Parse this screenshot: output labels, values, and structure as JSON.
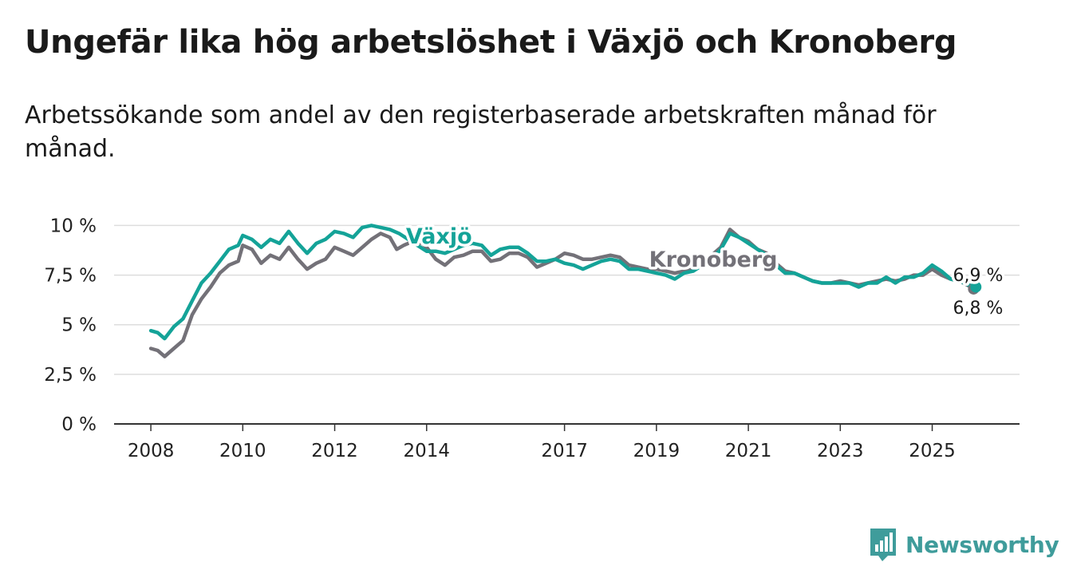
{
  "title": "Ungefär lika hög arbetslöshet i Växjö och Kronoberg",
  "subtitle": "Arbetssökande som andel av den registerbaserade arbetskraften månad för månad.",
  "brand": "Newsworthy",
  "colors": {
    "vaxjo": "#14a398",
    "kronoberg": "#737178",
    "grid": "#dddddd",
    "axis": "#333333",
    "brand": "#3f9c9b"
  },
  "chart_data": {
    "type": "line",
    "title": "Ungefär lika hög arbetslöshet i Växjö och Kronoberg",
    "subtitle": "Arbetssökande som andel av den registerbaserade arbetskraften månad för månad.",
    "xlabel": "",
    "ylabel": "",
    "ylim": [
      0,
      10.5
    ],
    "xlim": [
      2007.2,
      2026.9
    ],
    "grid": true,
    "x_ticks": [
      {
        "value": 2008,
        "label": "2008"
      },
      {
        "value": 2010,
        "label": "2010"
      },
      {
        "value": 2012,
        "label": "2012"
      },
      {
        "value": 2014,
        "label": "2014"
      },
      {
        "value": 2017,
        "label": "2017"
      },
      {
        "value": 2019,
        "label": "2019"
      },
      {
        "value": 2021,
        "label": "2021"
      },
      {
        "value": 2023,
        "label": "2023"
      },
      {
        "value": 2025,
        "label": "2025"
      }
    ],
    "y_ticks": [
      {
        "value": 0,
        "label": "0 %"
      },
      {
        "value": 2.5,
        "label": "2,5 %"
      },
      {
        "value": 5,
        "label": "5 %"
      },
      {
        "value": 7.5,
        "label": "7,5 %"
      },
      {
        "value": 10,
        "label": "10 %"
      }
    ],
    "series": [
      {
        "name": "Kronoberg",
        "label": "Kronoberg",
        "end_label": "6,8 %",
        "points": [
          [
            2008.0,
            3.8
          ],
          [
            2008.15,
            3.7
          ],
          [
            2008.3,
            3.4
          ],
          [
            2008.5,
            3.8
          ],
          [
            2008.7,
            4.2
          ],
          [
            2008.9,
            5.5
          ],
          [
            2009.1,
            6.3
          ],
          [
            2009.3,
            6.9
          ],
          [
            2009.5,
            7.6
          ],
          [
            2009.7,
            8.0
          ],
          [
            2009.9,
            8.2
          ],
          [
            2010.0,
            9.0
          ],
          [
            2010.2,
            8.8
          ],
          [
            2010.4,
            8.1
          ],
          [
            2010.6,
            8.5
          ],
          [
            2010.8,
            8.3
          ],
          [
            2011.0,
            8.9
          ],
          [
            2011.2,
            8.3
          ],
          [
            2011.4,
            7.8
          ],
          [
            2011.6,
            8.1
          ],
          [
            2011.8,
            8.3
          ],
          [
            2012.0,
            8.9
          ],
          [
            2012.2,
            8.7
          ],
          [
            2012.4,
            8.5
          ],
          [
            2012.6,
            8.9
          ],
          [
            2012.8,
            9.3
          ],
          [
            2013.0,
            9.6
          ],
          [
            2013.2,
            9.4
          ],
          [
            2013.35,
            8.8
          ],
          [
            2013.5,
            9.0
          ],
          [
            2013.7,
            9.2
          ],
          [
            2013.9,
            9.1
          ],
          [
            2014.0,
            8.9
          ],
          [
            2014.2,
            8.3
          ],
          [
            2014.4,
            8.0
          ],
          [
            2014.6,
            8.4
          ],
          [
            2014.8,
            8.5
          ],
          [
            2015.0,
            8.7
          ],
          [
            2015.2,
            8.7
          ],
          [
            2015.4,
            8.2
          ],
          [
            2015.6,
            8.3
          ],
          [
            2015.8,
            8.6
          ],
          [
            2016.0,
            8.6
          ],
          [
            2016.2,
            8.4
          ],
          [
            2016.4,
            7.9
          ],
          [
            2016.6,
            8.1
          ],
          [
            2016.8,
            8.3
          ],
          [
            2017.0,
            8.6
          ],
          [
            2017.2,
            8.5
          ],
          [
            2017.4,
            8.3
          ],
          [
            2017.6,
            8.3
          ],
          [
            2017.8,
            8.4
          ],
          [
            2018.0,
            8.5
          ],
          [
            2018.2,
            8.4
          ],
          [
            2018.4,
            8.0
          ],
          [
            2018.6,
            7.9
          ],
          [
            2018.8,
            7.8
          ],
          [
            2019.0,
            7.8
          ],
          [
            2019.2,
            7.7
          ],
          [
            2019.4,
            7.6
          ],
          [
            2019.6,
            7.7
          ],
          [
            2019.8,
            7.8
          ],
          [
            2020.0,
            8.1
          ],
          [
            2020.2,
            8.5
          ],
          [
            2020.4,
            8.9
          ],
          [
            2020.6,
            9.8
          ],
          [
            2020.8,
            9.4
          ],
          [
            2021.0,
            9.2
          ],
          [
            2021.2,
            8.8
          ],
          [
            2021.4,
            8.6
          ],
          [
            2021.6,
            8.1
          ],
          [
            2021.8,
            7.7
          ],
          [
            2022.0,
            7.6
          ],
          [
            2022.2,
            7.4
          ],
          [
            2022.4,
            7.2
          ],
          [
            2022.6,
            7.1
          ],
          [
            2022.8,
            7.1
          ],
          [
            2023.0,
            7.2
          ],
          [
            2023.2,
            7.1
          ],
          [
            2023.4,
            7.0
          ],
          [
            2023.6,
            7.1
          ],
          [
            2023.8,
            7.2
          ],
          [
            2024.0,
            7.3
          ],
          [
            2024.2,
            7.2
          ],
          [
            2024.4,
            7.3
          ],
          [
            2024.6,
            7.5
          ],
          [
            2024.8,
            7.5
          ],
          [
            2025.0,
            7.8
          ],
          [
            2025.2,
            7.5
          ],
          [
            2025.4,
            7.3
          ],
          [
            2025.6,
            7.2
          ],
          [
            2025.8,
            6.95
          ],
          [
            2025.9,
            6.8
          ]
        ]
      },
      {
        "name": "Växjö",
        "label": "Växjö",
        "end_label": "6,9 %",
        "points": [
          [
            2008.0,
            4.7
          ],
          [
            2008.15,
            4.6
          ],
          [
            2008.3,
            4.3
          ],
          [
            2008.5,
            4.9
          ],
          [
            2008.7,
            5.3
          ],
          [
            2008.9,
            6.2
          ],
          [
            2009.1,
            7.1
          ],
          [
            2009.3,
            7.6
          ],
          [
            2009.5,
            8.2
          ],
          [
            2009.7,
            8.8
          ],
          [
            2009.9,
            9.0
          ],
          [
            2010.0,
            9.5
          ],
          [
            2010.2,
            9.3
          ],
          [
            2010.4,
            8.9
          ],
          [
            2010.6,
            9.3
          ],
          [
            2010.8,
            9.1
          ],
          [
            2011.0,
            9.7
          ],
          [
            2011.2,
            9.1
          ],
          [
            2011.4,
            8.6
          ],
          [
            2011.6,
            9.1
          ],
          [
            2011.8,
            9.3
          ],
          [
            2012.0,
            9.7
          ],
          [
            2012.2,
            9.6
          ],
          [
            2012.4,
            9.4
          ],
          [
            2012.6,
            9.9
          ],
          [
            2012.8,
            10.0
          ],
          [
            2013.0,
            9.9
          ],
          [
            2013.2,
            9.8
          ],
          [
            2013.4,
            9.6
          ],
          [
            2013.6,
            9.3
          ],
          [
            2013.8,
            9.0
          ],
          [
            2014.0,
            8.7
          ],
          [
            2014.2,
            8.7
          ],
          [
            2014.4,
            8.6
          ],
          [
            2014.6,
            8.8
          ],
          [
            2014.8,
            9.0
          ],
          [
            2015.0,
            9.1
          ],
          [
            2015.2,
            9.0
          ],
          [
            2015.4,
            8.5
          ],
          [
            2015.6,
            8.8
          ],
          [
            2015.8,
            8.9
          ],
          [
            2016.0,
            8.9
          ],
          [
            2016.2,
            8.6
          ],
          [
            2016.4,
            8.2
          ],
          [
            2016.6,
            8.2
          ],
          [
            2016.8,
            8.3
          ],
          [
            2017.0,
            8.1
          ],
          [
            2017.2,
            8.0
          ],
          [
            2017.4,
            7.8
          ],
          [
            2017.6,
            8.0
          ],
          [
            2017.8,
            8.2
          ],
          [
            2018.0,
            8.3
          ],
          [
            2018.2,
            8.2
          ],
          [
            2018.4,
            7.8
          ],
          [
            2018.6,
            7.8
          ],
          [
            2018.8,
            7.7
          ],
          [
            2019.0,
            7.6
          ],
          [
            2019.2,
            7.5
          ],
          [
            2019.4,
            7.3
          ],
          [
            2019.6,
            7.6
          ],
          [
            2019.8,
            7.7
          ],
          [
            2020.0,
            8.0
          ],
          [
            2020.2,
            8.3
          ],
          [
            2020.4,
            8.8
          ],
          [
            2020.6,
            9.6
          ],
          [
            2020.8,
            9.4
          ],
          [
            2021.0,
            9.1
          ],
          [
            2021.2,
            8.8
          ],
          [
            2021.4,
            8.5
          ],
          [
            2021.6,
            8.0
          ],
          [
            2021.8,
            7.6
          ],
          [
            2022.0,
            7.6
          ],
          [
            2022.2,
            7.4
          ],
          [
            2022.4,
            7.2
          ],
          [
            2022.6,
            7.1
          ],
          [
            2022.8,
            7.1
          ],
          [
            2023.0,
            7.1
          ],
          [
            2023.2,
            7.1
          ],
          [
            2023.4,
            6.9
          ],
          [
            2023.6,
            7.1
          ],
          [
            2023.8,
            7.1
          ],
          [
            2024.0,
            7.4
          ],
          [
            2024.2,
            7.1
          ],
          [
            2024.4,
            7.4
          ],
          [
            2024.6,
            7.4
          ],
          [
            2024.8,
            7.6
          ],
          [
            2025.0,
            8.0
          ],
          [
            2025.2,
            7.7
          ],
          [
            2025.4,
            7.3
          ],
          [
            2025.6,
            7.2
          ],
          [
            2025.8,
            7.0
          ],
          [
            2025.95,
            6.9
          ]
        ]
      }
    ]
  }
}
